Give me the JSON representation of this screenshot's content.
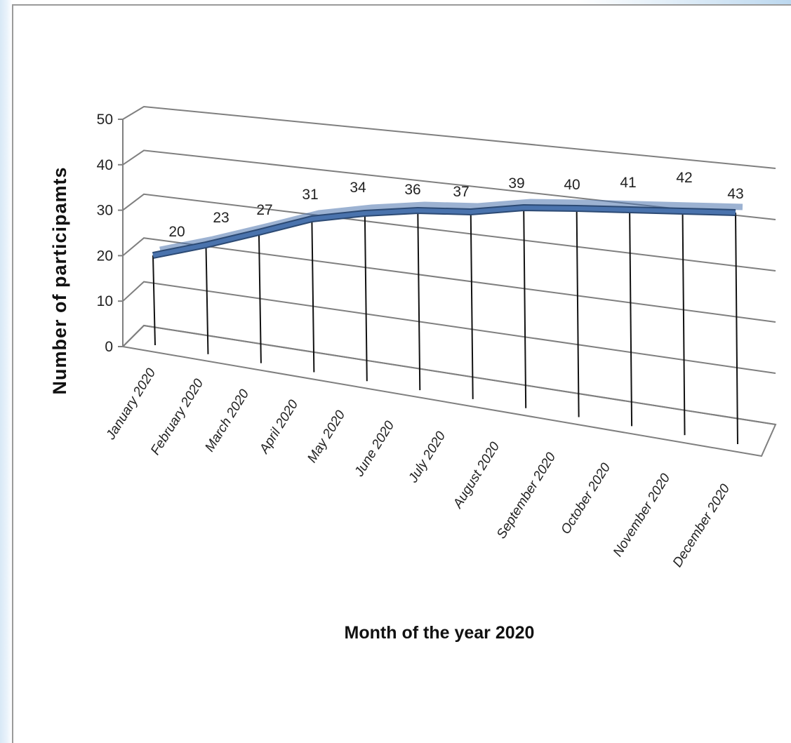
{
  "chart_data": {
    "type": "line",
    "title": "",
    "xlabel": "Month of the year 2020",
    "ylabel": "Number of participamts",
    "categories": [
      "January 2020",
      "February 2020",
      "March 2020",
      "April 2020",
      "May 2020",
      "June 2020",
      "July 2020",
      "August 2020",
      "September 2020",
      "October 2020",
      "November 2020",
      "December 2020"
    ],
    "series": [
      {
        "values": [
          20,
          23,
          27,
          31,
          34,
          36,
          37,
          39,
          40,
          41,
          42,
          43
        ],
        "data_labels": [
          "20",
          "23",
          "27",
          "31",
          "34",
          "36",
          "37",
          "39",
          "40",
          "41",
          "42",
          "43"
        ],
        "color": "#4a73ad"
      }
    ],
    "ylim": [
      0,
      50
    ],
    "yticks": [
      0,
      10,
      20,
      30,
      40,
      50
    ],
    "grid": true,
    "style": "3d-perspective",
    "gridline_color": "#7f7f7f",
    "line_color": "#4a73ad",
    "line_shadow_color": "#2c4a74"
  }
}
